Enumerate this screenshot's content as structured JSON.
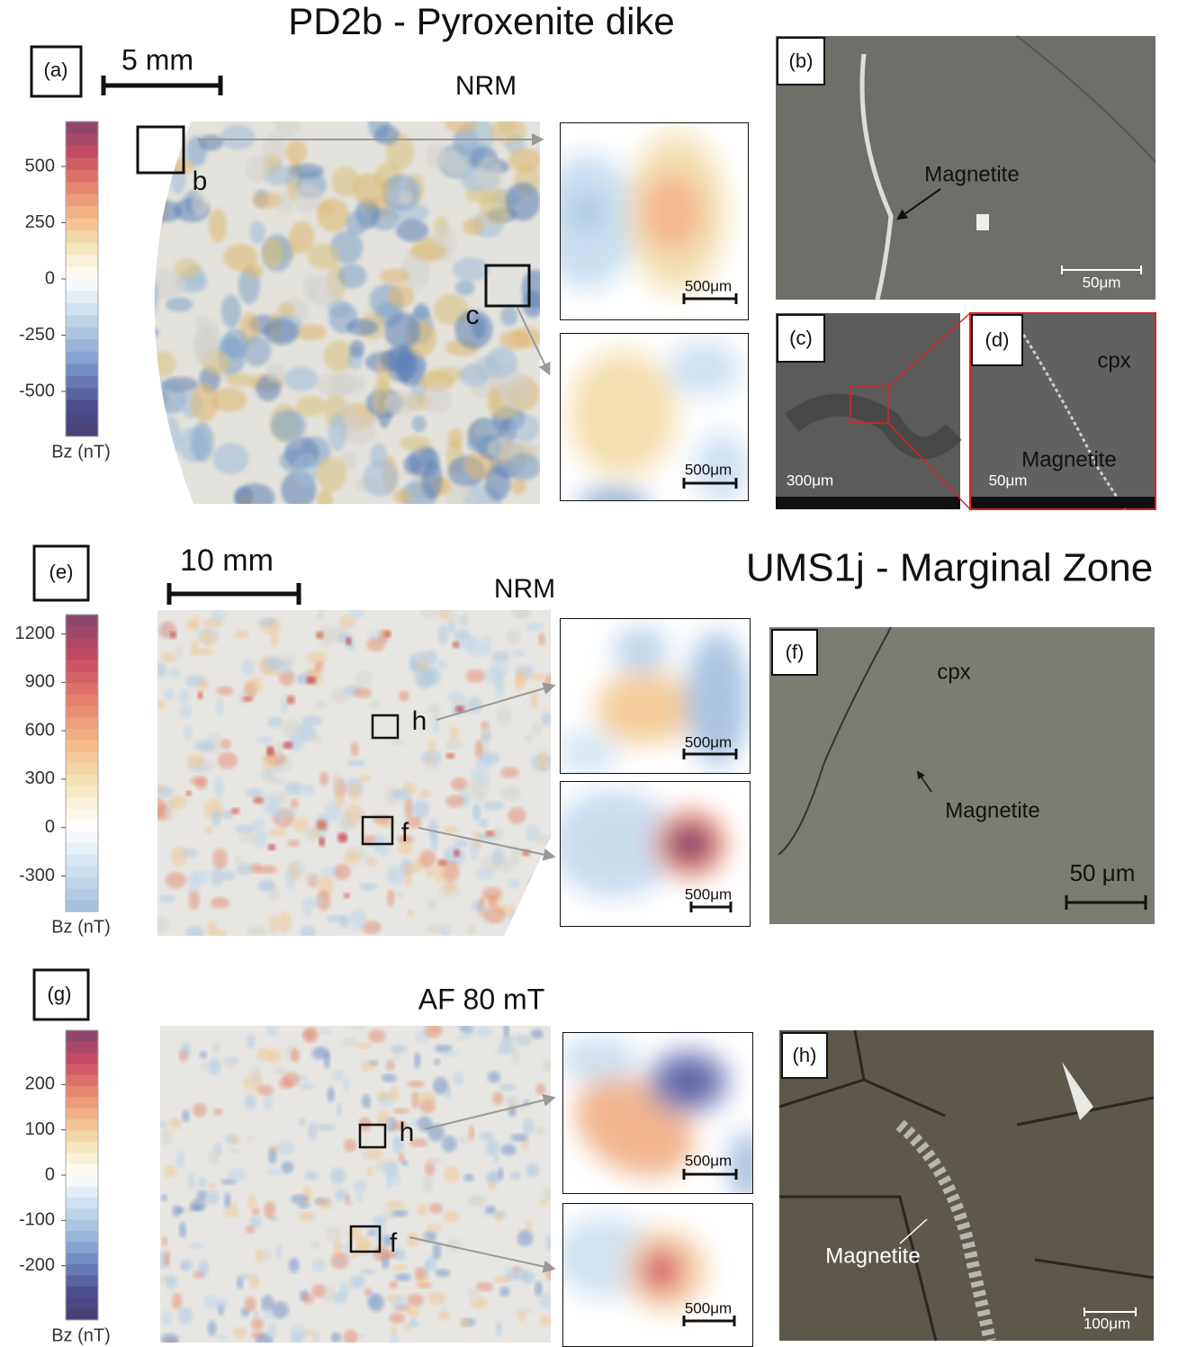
{
  "figure": {
    "top": {
      "title": "PD2b - Pyroxenite dike",
      "panel_a": "(a)",
      "scale_bar": "5 mm",
      "map_label": "NRM",
      "colorbar": {
        "label": "Bz (nT)",
        "lim": [
          -700,
          700
        ],
        "ticks": [
          500,
          250,
          0,
          -250,
          -500
        ]
      },
      "box_b": "b",
      "box_c": "c",
      "inset_scale_1": "500μm",
      "inset_scale_2": "500μm",
      "panel_b": "(b)",
      "b_mineral": "Magnetite",
      "b_scale": "50μm",
      "panel_c": "(c)",
      "c_scale": "300μm",
      "panel_d": "(d)",
      "d_cpx": "cpx",
      "d_mineral": "Magnetite",
      "d_scale": "50μm"
    },
    "middle": {
      "title": "UMS1j - Marginal Zone",
      "panel_e": "(e)",
      "scale_bar": "10 mm",
      "map_label": "NRM",
      "colorbar": {
        "label": "Bz (nT)",
        "lim": [
          -520,
          1320
        ],
        "ticks": [
          1200,
          900,
          600,
          300,
          0,
          -300
        ]
      },
      "box_h": "h",
      "box_f": "f",
      "inset_scale_1": "500μm",
      "inset_scale_2": "500μm",
      "panel_f": "(f)",
      "f_cpx": "cpx",
      "f_mineral": "Magnetite",
      "f_scale": "50 μm"
    },
    "bottom": {
      "panel_g": "(g)",
      "map_label": "AF 80 mT",
      "colorbar": {
        "label": "Bz (nT)",
        "lim": [
          -320,
          320
        ],
        "ticks": [
          200,
          100,
          0,
          -100,
          -200
        ]
      },
      "box_h": "h",
      "box_f": "f",
      "inset_scale_1": "500μm",
      "inset_scale_2": "500μm",
      "panel_h": "(h)",
      "h_mineral": "Magnetite",
      "h_scale": "100μm"
    }
  }
}
